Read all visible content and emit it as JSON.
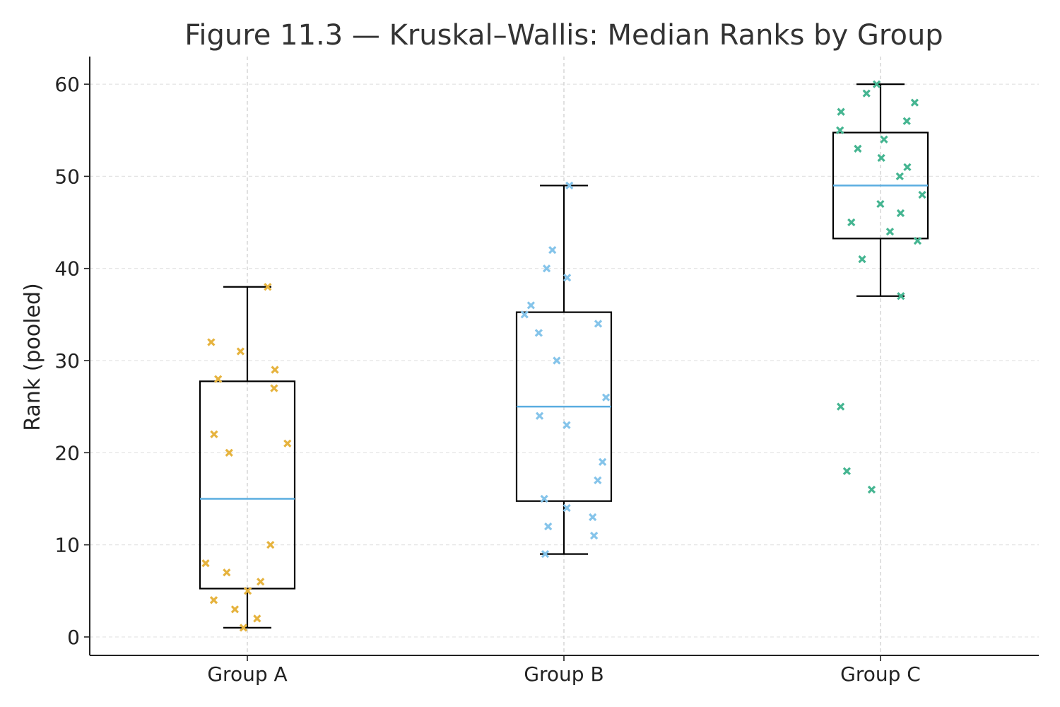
{
  "chart_data": {
    "type": "box",
    "title": "Figure 11.3 — Kruskal–Wallis: Median Ranks by Group",
    "xlabel": "",
    "ylabel": "Rank (pooled)",
    "ylim": [
      -2,
      63
    ],
    "yticks": [
      0,
      10,
      20,
      30,
      40,
      50,
      60
    ],
    "grid": true,
    "categories": [
      "Group A",
      "Group B",
      "Group C"
    ],
    "boxes": [
      {
        "category": "Group A",
        "whisker_low": 1,
        "q1": 5.25,
        "median": 15,
        "q3": 27.75,
        "whisker_high": 38
      },
      {
        "category": "Group B",
        "whisker_low": 9,
        "q1": 14.75,
        "median": 25,
        "q3": 35.25,
        "whisker_high": 49
      },
      {
        "category": "Group C",
        "whisker_low": 37,
        "q1": 43.25,
        "median": 49,
        "q3": 54.75,
        "whisker_high": 60
      }
    ],
    "points": [
      {
        "category": "Group A",
        "marker_color": "#e6b33e",
        "values": [
          38,
          32,
          31,
          29,
          28,
          27,
          22,
          21,
          20,
          10,
          8,
          7,
          6,
          5,
          4,
          3,
          2,
          1
        ]
      },
      {
        "category": "Group B",
        "marker_color": "#85c4ea",
        "values": [
          49,
          42,
          40,
          39,
          36,
          35,
          34,
          33,
          30,
          26,
          24,
          23,
          19,
          17,
          15,
          14,
          13,
          12,
          11,
          9
        ]
      },
      {
        "category": "Group C",
        "marker_color": "#45b591",
        "values": [
          60,
          59,
          58,
          57,
          56,
          55,
          54,
          53,
          52,
          51,
          50,
          48,
          47,
          46,
          45,
          44,
          43,
          41,
          37,
          25,
          18,
          16
        ]
      }
    ],
    "colors": {
      "median_line": "#5aade0",
      "box_edge": "#000000",
      "grid": "#e3e3e3",
      "vgrid": "#cccccc"
    }
  }
}
